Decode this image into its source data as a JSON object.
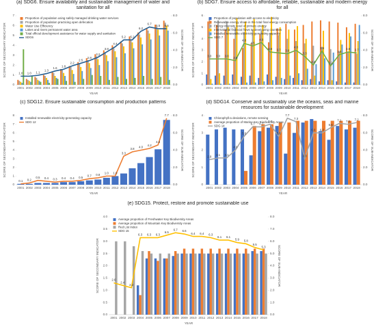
{
  "chart_data": [
    {
      "type": "combo",
      "title": "(a) SDG6. Ensure availability and sustainable management of water and sanitation for all",
      "xlabel": "YEAR",
      "ylabel": "SCORE OF SECONDARY INDICATOR",
      "y2label": "SCORE OF SUB-INDICATOR",
      "categories": [
        "2001",
        "2002",
        "2003",
        "2004",
        "2005",
        "2006",
        "2007",
        "2008",
        "2009",
        "2010",
        "2011",
        "2012",
        "2013",
        "2014",
        "2015",
        "2016",
        "2017",
        "2018"
      ],
      "ylim": [
        0,
        7
      ],
      "yticks": [
        0,
        1,
        2,
        3,
        4,
        5,
        6,
        7
      ],
      "y2lim": [
        0,
        8
      ],
      "y2ticks": [
        {
          "value": 0,
          "label": "0.0"
        },
        {
          "value": 2,
          "label": "2.0"
        },
        {
          "value": 4,
          "label": "4.0"
        },
        {
          "value": 6,
          "label": "6.0"
        },
        {
          "value": 8,
          "label": "8.0"
        }
      ],
      "grid": false,
      "legend": "top-left",
      "series": [
        {
          "name": "Proportion of population using safely managed drinking water services",
          "color": "#ed7d31",
          "values": [
            0.5,
            0.6,
            0.8,
            1.0,
            1.3,
            1.6,
            1.9,
            2.3,
            2.7,
            3.1,
            3.5,
            4.0,
            4.4,
            4.9,
            5.3,
            5.7,
            6.1,
            6.5
          ]
        },
        {
          "name": "Proportion of population practicing open defecation",
          "color": "#a5a5a5",
          "values": [
            0.4,
            0.5,
            0.7,
            0.9,
            1.2,
            1.5,
            1.8,
            2.1,
            2.5,
            2.9,
            3.3,
            3.7,
            4.2,
            4.6,
            5.1,
            5.5,
            5.9,
            6.3
          ]
        },
        {
          "name": "Water Use Efficiency",
          "color": "#ffc000",
          "values": [
            0.3,
            0.4,
            0.5,
            0.7,
            0.9,
            1.2,
            1.5,
            1.8,
            2.2,
            2.6,
            3.0,
            3.4,
            3.9,
            4.3,
            4.8,
            5.2,
            5.6,
            6.0
          ]
        },
        {
          "name": "Lakes and rivers permanent water area",
          "color": "#5b9bd5",
          "values": [
            0.2,
            0.3,
            0.4,
            0.5,
            0.7,
            0.9,
            1.1,
            1.4,
            1.7,
            2.0,
            2.4,
            2.8,
            3.2,
            3.7,
            4.1,
            4.6,
            5.0,
            5.5
          ]
        },
        {
          "name": "Total official development assistance for water supply and sanitation",
          "color": "#70ad47",
          "values": [
            3.6,
            0.9,
            0.3,
            0.2,
            0.6,
            0.4,
            0.3,
            0.6,
            1.0,
            0.9,
            0.5,
            0.8,
            0.6,
            0.7,
            0.9,
            0.6,
            0.8,
            0.5
          ]
        },
        {
          "name": "SDG6",
          "color": "#255e91",
          "axis": "y2",
          "values": [
            1.0,
            1.0,
            1.1,
            1.3,
            1.6,
            1.8,
            2.2,
            2.5,
            2.8,
            3.2,
            3.8,
            4.4,
            5.2,
            5.2,
            6.2,
            6.7,
            6.5,
            6.5
          ],
          "value_labels": [
            "1.0",
            "1.0",
            "1.1",
            "1.3",
            "1.6",
            "1.8",
            "2.2",
            "2.5",
            "2.8",
            "3.2",
            "3.8",
            "4.4",
            "5.2",
            "5.2",
            "6.2",
            "6.7",
            "6.5",
            "6.5"
          ]
        }
      ]
    },
    {
      "type": "combo",
      "title": "(b) SDG7. Ensure access to affordable, reliable, sustainable and modern energy for all",
      "xlabel": "YEAR",
      "ylabel": "SCORE OF SECONDARY INDICATOR",
      "y2label": "SCORE OF SUB-INDICATOR",
      "categories": [
        "2001",
        "2002",
        "2003",
        "2004",
        "2005",
        "2006",
        "2007",
        "2008",
        "2009",
        "2010",
        "2011",
        "2012",
        "2013",
        "2014",
        "2015",
        "2016",
        "2017",
        "2018"
      ],
      "ylim": [
        0,
        6
      ],
      "yticks": [
        0,
        1,
        2,
        3,
        4,
        5,
        6
      ],
      "y2lim": [
        0,
        8
      ],
      "y2ticks": [
        {
          "value": 0,
          "label": "0.0"
        },
        {
          "value": 2,
          "label": "2.0"
        },
        {
          "value": 4,
          "label": "4.0"
        },
        {
          "value": 6,
          "label": "6.0"
        },
        {
          "value": 8,
          "label": "8.0"
        }
      ],
      "grid": false,
      "legend": "top-left",
      "series": [
        {
          "name": "Proportion of population with access to electricity",
          "color": "#4472c4",
          "values": [
            0.9,
            0.8,
            0.8,
            0.9,
            0.7,
            0.8,
            0.6,
            0.9,
            0.7,
            0.5,
            0.6,
            0.4,
            0.5,
            0.3,
            0.4,
            0.3,
            0.2,
            0.2
          ]
        },
        {
          "name": "Renewable energy share in the total final energy consumption",
          "color": "#ed7d31",
          "values": [
            5.5,
            5.2,
            4.8,
            4.0,
            3.2,
            3.6,
            4.4,
            3.7,
            4.9,
            5.3,
            4.8,
            5.2,
            5.5,
            5.6,
            5.5,
            5.4,
            5.0,
            5.3
          ]
        },
        {
          "name": "Energy intensity level of primary energy",
          "color": "#a5a5a5",
          "values": [
            5.8,
            5.6,
            5.5,
            5.0,
            4.6,
            4.8,
            4.7,
            4.5,
            4.3,
            4.0,
            3.8,
            3.6,
            3.4,
            3.3,
            3.1,
            2.9,
            2.8,
            2.7
          ]
        },
        {
          "name": "International financial flows to developing countries",
          "color": "#ffc000",
          "values": [
            0.5,
            1.0,
            5.0,
            5.8,
            5.5,
            5.7,
            5.2,
            5.9,
            5.0,
            4.8,
            5.1,
            4.0,
            0.8,
            4.7,
            0.4,
            3.9,
            4.5,
            3.8
          ]
        },
        {
          "name": "Installed renewable electricity-generating capacity",
          "color": "#5b9bd5",
          "values": [
            0.1,
            0.1,
            0.1,
            0.1,
            0.2,
            0.2,
            0.3,
            0.4,
            0.6,
            0.8,
            1.0,
            1.4,
            1.8,
            2.3,
            2.8,
            3.5,
            4.2,
            5.2
          ]
        },
        {
          "name": "SDG 7",
          "color": "#70ad47",
          "axis": "y2",
          "values": [
            3.0,
            3.0,
            3.0,
            2.8,
            4.8,
            4.5,
            4.9,
            3.8,
            3.7,
            3.6,
            4.0,
            3.3,
            2.3,
            3.9,
            2.2,
            3.5,
            3.8,
            3.7
          ],
          "value_labels": [
            "3.0",
            "3.0",
            "3.0",
            "2.8",
            "4.8",
            "4.5",
            "4.9",
            "3.8",
            "3.7",
            "3.6",
            "4.0",
            "3.3",
            "2.3",
            "3.9",
            "2.2",
            "3.5",
            "3.8",
            "3.7"
          ]
        }
      ]
    },
    {
      "type": "combo",
      "title": "(c) SDG12. Ensure sustainable consumption and production patterns",
      "xlabel": "YEAR",
      "ylabel": "SCORE OF SECONDARY INDICATOR",
      "y2label": "SCORE OF SUB-INDICATOR",
      "categories": [
        "2001",
        "2002",
        "2003",
        "2004",
        "2005",
        "2006",
        "2007",
        "2008",
        "2009",
        "2010",
        "2011",
        "2012",
        "2013",
        "2014",
        "2015",
        "2016",
        "2017",
        "2018"
      ],
      "ylim": [
        0,
        8
      ],
      "yticks": [
        0,
        1,
        2,
        3,
        4,
        5,
        6,
        7,
        8
      ],
      "y2lim": [
        0,
        8
      ],
      "y2ticks": [
        {
          "value": 0,
          "label": "0.0"
        },
        {
          "value": 2,
          "label": "2.0"
        },
        {
          "value": 4,
          "label": "4.0"
        },
        {
          "value": 6,
          "label": "6.0"
        },
        {
          "value": 8,
          "label": "8.0"
        }
      ],
      "grid": false,
      "legend": "top-left",
      "series": [
        {
          "name": "Installed renewable electricity-generating capacity",
          "color": "#4472c4",
          "values": [
            0.1,
            0.1,
            0.2,
            0.2,
            0.2,
            0.3,
            0.3,
            0.4,
            0.5,
            0.6,
            0.8,
            1.0,
            1.3,
            1.9,
            2.5,
            3.2,
            4.1,
            7.5
          ]
        },
        {
          "name": "SDG 12",
          "color": "#ed7d31",
          "axis": "y2",
          "values": [
            0.1,
            0.2,
            0.5,
            0.4,
            0.3,
            0.4,
            0.4,
            0.5,
            0.7,
            0.8,
            1.0,
            1.0,
            3.3,
            3.8,
            4.0,
            4.2,
            4.6,
            7.7
          ],
          "value_labels": [
            "0.1",
            "0.2",
            "0.5",
            "0.4",
            "0.3",
            "0.4",
            "0.4",
            "0.5",
            "0.7",
            "0.8",
            "1.0",
            "1.0",
            "3.3",
            "3.8",
            "4.0",
            "4.2",
            "4.6",
            "7.7"
          ]
        }
      ]
    },
    {
      "type": "combo",
      "title": "(d) SDG14. Conserve and sustainably use the oceans, seas and marine resources for sustainable development",
      "xlabel": "YEAR",
      "ylabel": "SCORE OF SECONDARY INDICATOR",
      "y2label": "SCORE OF SUB-INDICATOR",
      "categories": [
        "2001",
        "2002",
        "2003",
        "2004",
        "2005",
        "2006",
        "2007",
        "2008",
        "2009",
        "2010",
        "2011",
        "2012",
        "2013",
        "2014",
        "2015",
        "2016",
        "2017",
        "2018"
      ],
      "ylim": [
        0,
        4
      ],
      "yticks": [
        0,
        1,
        2,
        3,
        4
      ],
      "y2lim": [
        0,
        8
      ],
      "y2ticks": [
        {
          "value": 0,
          "label": "0.0"
        },
        {
          "value": 2,
          "label": "2.0"
        },
        {
          "value": 4,
          "label": "4.0"
        },
        {
          "value": 6,
          "label": "6.0"
        },
        {
          "value": 8,
          "label": "8.0"
        }
      ],
      "grid": false,
      "legend": "top-left",
      "series": [
        {
          "name": "Chlorophyll-a deviations, remote sensing",
          "color": "#4472c4",
          "values": [
            2.9,
            3.2,
            3.3,
            3.2,
            3.2,
            1.7,
            3.1,
            3.3,
            3.4,
            1.8,
            3.0,
            3.6,
            3.8,
            3.1,
            2.6,
            3.4,
            3.2,
            3.3
          ]
        },
        {
          "name": "Average proportion of Marine Key Biodiversity Areas",
          "color": "#ed7d31",
          "values": [
            0,
            0,
            0,
            0,
            0.8,
            3.4,
            3.5,
            3.5,
            3.6,
            3.6,
            3.7,
            3.7,
            3.7,
            3.7,
            3.7,
            3.7,
            3.7,
            3.7
          ]
        },
        {
          "name": "SDG 14",
          "color": "#a5a5a5",
          "axis": "y2",
          "values": [
            2.9,
            3.1,
            3.1,
            4.0,
            5.6,
            6.7,
            6.7,
            7.0,
            5.6,
            7.7,
            7.3,
            3.0,
            6.0,
            6.0,
            6.6,
            7.1,
            7.0,
            7.2
          ],
          "value_labels": [
            "2.9",
            "3.1",
            "3.1",
            "4.0",
            "5.6",
            "6.7",
            "6.7",
            "7.0",
            "5.6",
            "7.7",
            "7.3",
            "3.0",
            "6.0",
            "6.0",
            "6.6",
            "7.1",
            "7.0",
            "7.2"
          ]
        }
      ]
    },
    {
      "type": "combo",
      "title": "(e) SDG15. Protect, restore and promote sustainable use",
      "xlabel": "YEAR",
      "ylabel": "SCORE OF SECONDARY INDICATOR",
      "y2label": "SCORE OF SUB-INDICATOR",
      "categories": [
        "2001",
        "2002",
        "2003",
        "2004",
        "2005",
        "2006",
        "2007",
        "2008",
        "2009",
        "2010",
        "2011",
        "2012",
        "2013",
        "2014",
        "2015",
        "2016",
        "2017",
        "2018"
      ],
      "ylim": [
        0,
        4
      ],
      "yticks": [
        {
          "value": 0,
          "label": "0.0"
        },
        0.5,
        {
          "value": 1,
          "label": "1.0"
        },
        1.5,
        {
          "value": 2,
          "label": "2.0"
        },
        2.5,
        {
          "value": 3,
          "label": "3.0"
        },
        3.5,
        {
          "value": 4,
          "label": "4.0"
        }
      ],
      "y2lim": [
        0,
        8
      ],
      "y2ticks": [
        {
          "value": 0,
          "label": "0.0"
        },
        {
          "value": 1,
          "label": "1.0"
        },
        {
          "value": 2,
          "label": "2.0"
        },
        {
          "value": 3,
          "label": "3.0"
        },
        {
          "value": 4,
          "label": "4.0"
        },
        {
          "value": 5,
          "label": "5.0"
        },
        {
          "value": 6,
          "label": "6.0"
        },
        {
          "value": 7,
          "label": "7.0"
        },
        {
          "value": 8,
          "label": "8.0"
        }
      ],
      "grid": false,
      "legend": "top-left",
      "series": [
        {
          "name": "Average proportion of Freshwater Key Biodiversity Areas",
          "color": "#4472c4",
          "values": [
            0,
            0,
            0,
            1.2,
            2.3,
            2.3,
            2.3,
            2.4,
            2.5,
            2.5,
            2.5,
            2.5,
            2.5,
            2.5,
            2.5,
            2.5,
            2.6,
            2.6
          ]
        },
        {
          "name": "Average proportion of Mountain Key Biodiversity Areas",
          "color": "#ed7d31",
          "values": [
            0,
            0,
            0,
            0.8,
            2.6,
            2.2,
            2.3,
            2.6,
            2.7,
            2.7,
            2.7,
            2.7,
            2.7,
            2.7,
            2.7,
            2.7,
            2.7,
            2.7
          ]
        },
        {
          "name": "Red List Index",
          "color": "#a5a5a5",
          "values": [
            3.0,
            3.0,
            2.8,
            2.6,
            2.5,
            2.5,
            2.5,
            2.5,
            2.5,
            2.5,
            2.5,
            2.5,
            2.5,
            2.5,
            2.5,
            2.5,
            2.5,
            2.5
          ]
        },
        {
          "name": "SDG 15",
          "color": "#ffc000",
          "axis": "y2",
          "values": [
            2.6,
            2.4,
            2.2,
            6.3,
            6.3,
            6.3,
            6.5,
            6.7,
            6.6,
            6.4,
            6.4,
            6.3,
            6.1,
            6.1,
            5.9,
            5.8,
            5.5,
            5.3
          ],
          "value_labels": [
            "2.6",
            "2.4",
            "2.2",
            "6.3",
            "6.3",
            "6.3",
            "6.5",
            "6.7",
            "6.6",
            "6.4",
            "6.4",
            "6.3",
            "6.1",
            "6.1",
            "5.9",
            "5.8",
            "5.5",
            "5.3"
          ]
        }
      ]
    }
  ]
}
